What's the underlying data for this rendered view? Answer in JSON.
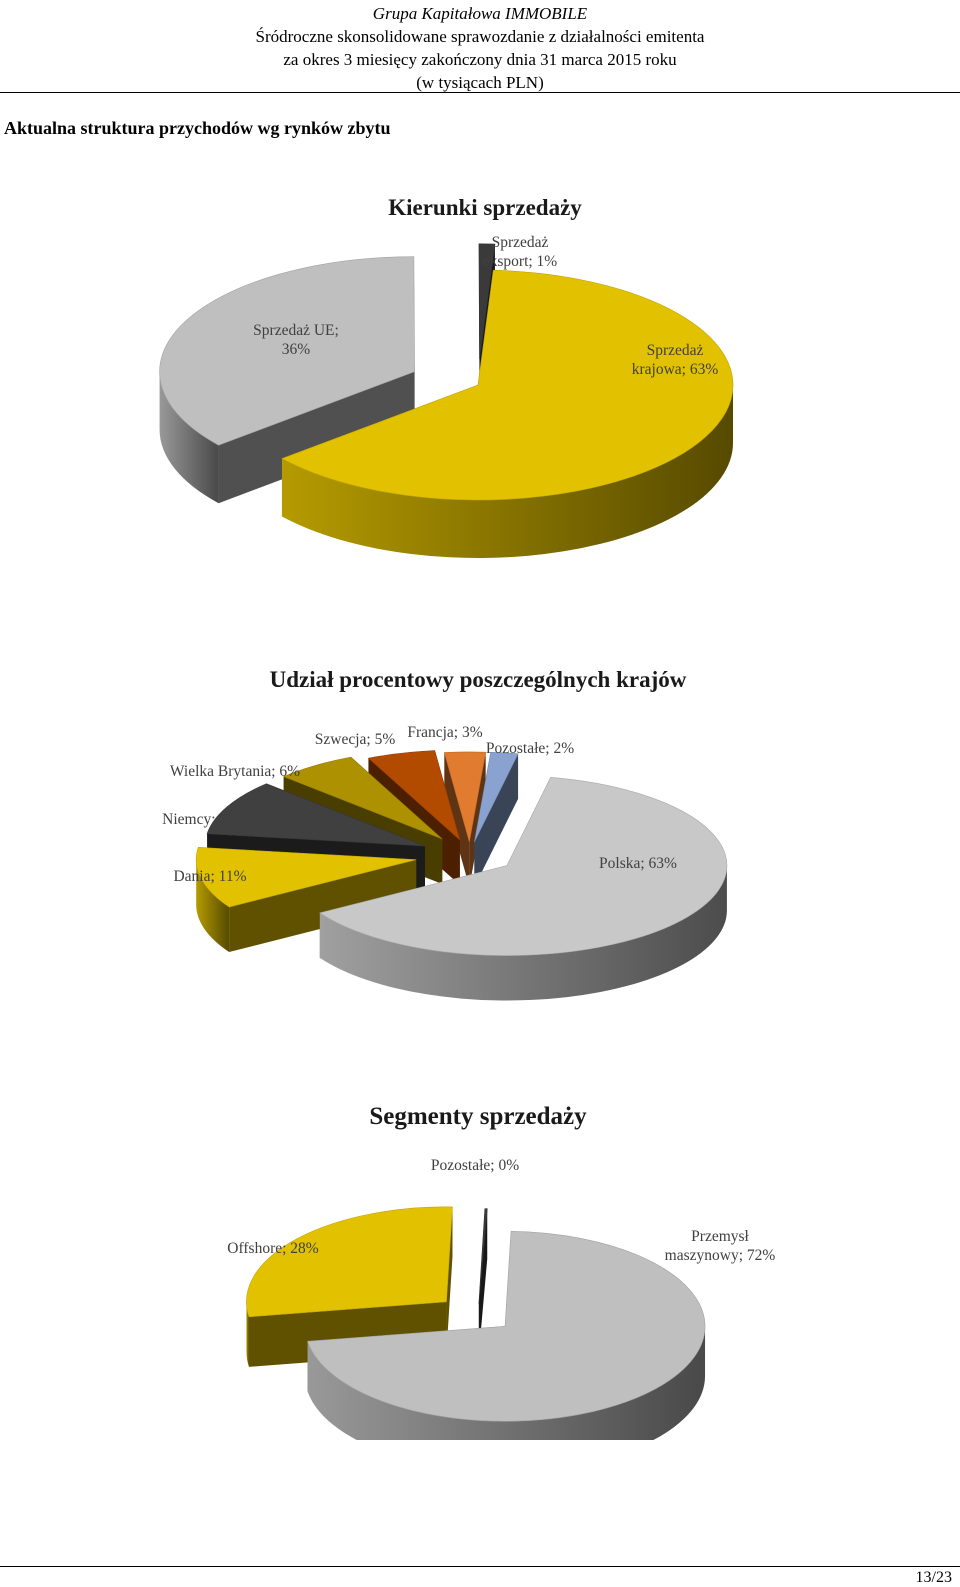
{
  "header": {
    "company": "Grupa Kapitałowa IMMOBILE",
    "line2": "Śródroczne skonsolidowane sprawozdanie z działalności emitenta",
    "line3": "za okres 3 miesięcy zakończony dnia 31 marca 2015 roku",
    "line4": "(w tysiącach PLN)"
  },
  "section_title": "Aktualna struktura przychodów wg rynków zbytu",
  "page_number": "13/23",
  "chart_data": [
    {
      "type": "pie",
      "title": "Kierunki sprzedaży",
      "slices": [
        {
          "label": [
            "Sprzedaż",
            "krajowa; 63%"
          ],
          "value": 63,
          "color": "#e2c200"
        },
        {
          "label": [
            "Sprzedaż UE;",
            "36%"
          ],
          "value": 36,
          "color": "#bfbfbf"
        },
        {
          "label": [
            "Sprzedaż",
            "eksport; 1%"
          ],
          "value": 1,
          "color": "#3a3a3a"
        }
      ]
    },
    {
      "type": "pie",
      "title": "Udział procentowy poszczególnych krajów",
      "slices": [
        {
          "label": [
            "Polska; 63%"
          ],
          "value": 63,
          "color": "#c8c8c8"
        },
        {
          "label": [
            "Dania; 11%"
          ],
          "value": 11,
          "color": "#e2c200"
        },
        {
          "label": [
            "Niemcy; 10%"
          ],
          "value": 10,
          "color": "#404040"
        },
        {
          "label": [
            "Wielka Brytania; 6%"
          ],
          "value": 6,
          "color": "#ad9100"
        },
        {
          "label": [
            "Szwecja; 5%"
          ],
          "value": 5,
          "color": "#b24a00"
        },
        {
          "label": [
            "Francja; 3%"
          ],
          "value": 3,
          "color": "#e07b30"
        },
        {
          "label": [
            "Pozostałe; 2%"
          ],
          "value": 2,
          "color": "#8aa2d0"
        }
      ]
    },
    {
      "type": "pie",
      "title": "Segmenty sprzedaży",
      "slices": [
        {
          "label": [
            "Przemysł",
            "maszynowy; 72%"
          ],
          "value": 72,
          "color": "#bfbfbf"
        },
        {
          "label": [
            "Offshore; 28%"
          ],
          "value": 28,
          "color": "#e2c200"
        },
        {
          "label": [
            "Pozostałe; 0%"
          ],
          "value": 0,
          "color": "#3a3a3a"
        }
      ]
    }
  ]
}
